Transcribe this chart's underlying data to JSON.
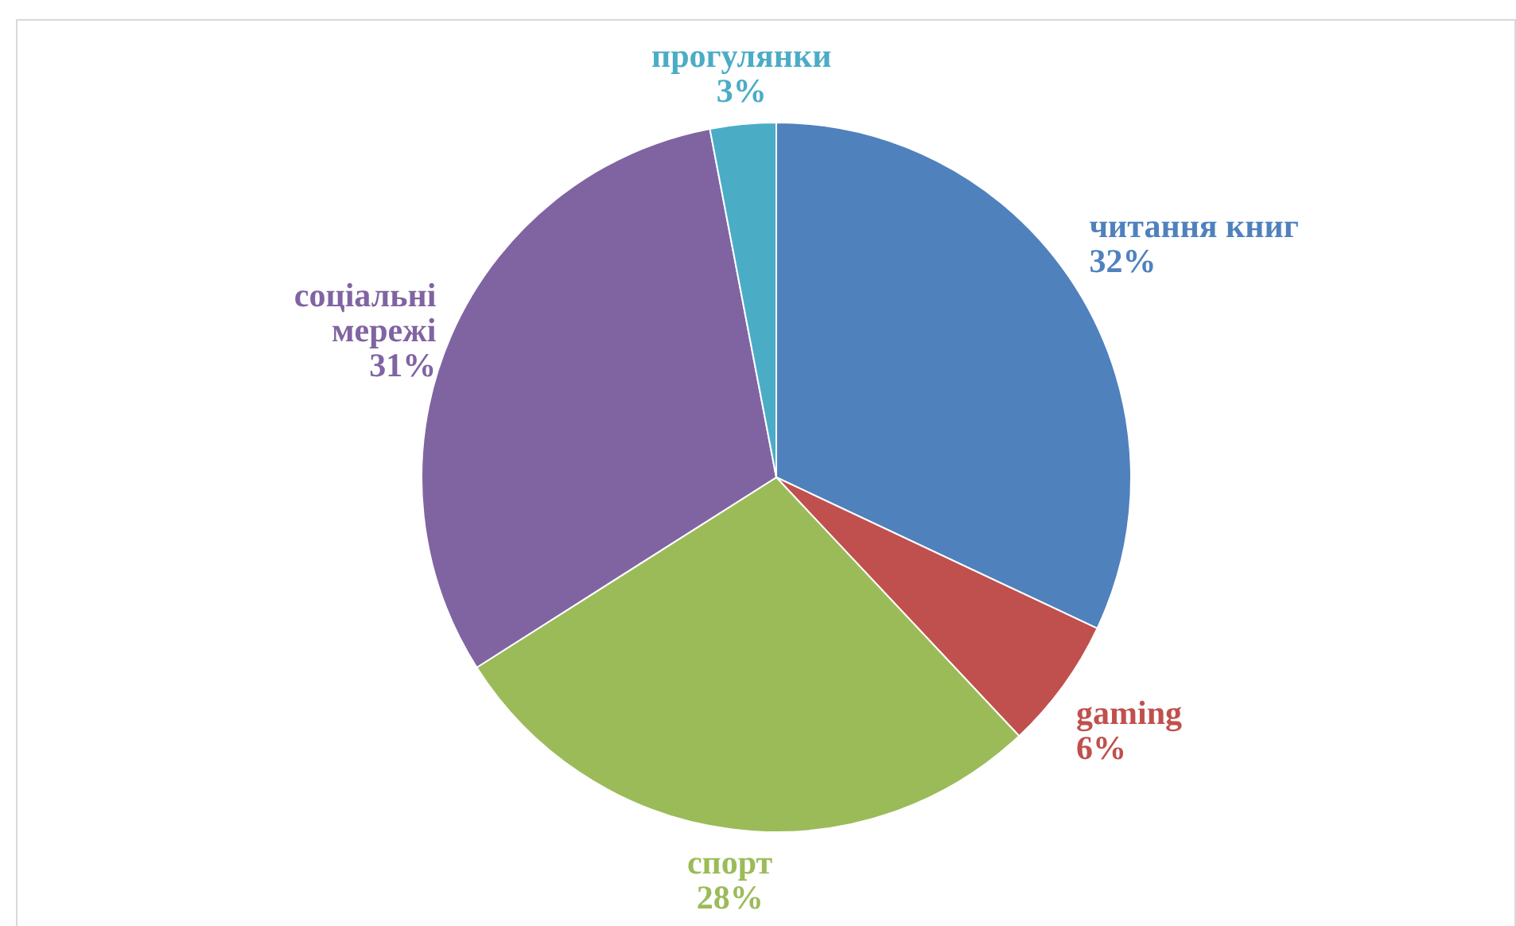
{
  "chart_data": {
    "type": "pie",
    "categories": [
      "читання книг",
      "gaming",
      "спорт",
      "соціальні мережі",
      "прогулянки"
    ],
    "values": [
      32,
      6,
      28,
      31,
      3
    ],
    "value_labels": [
      "32%",
      "6%",
      "28%",
      "31%",
      "3%"
    ],
    "colors": [
      "#4f81bd",
      "#c0504d",
      "#9bbb59",
      "#8064a2",
      "#4bacc6"
    ]
  }
}
